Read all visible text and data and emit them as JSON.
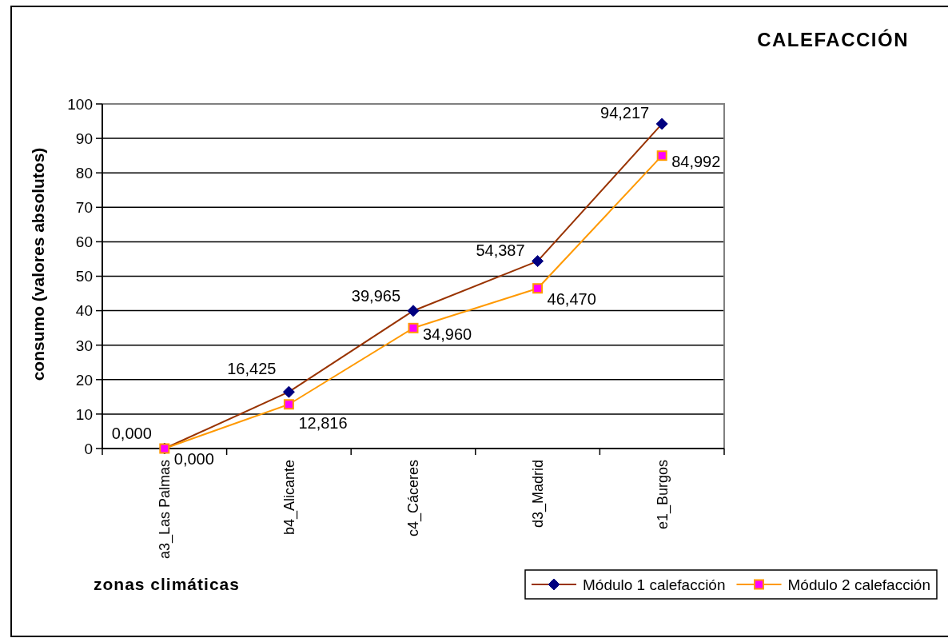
{
  "chart_data": {
    "type": "line",
    "title": "CALEFACCIÓN",
    "xlabel": "zonas climáticas",
    "ylabel": "consumo (valores absolutos)",
    "categories": [
      "a3_Las Palmas",
      "b4_Alicante",
      "c4_Cáceres",
      "d3_Madrid",
      "e1_Burgos"
    ],
    "series": [
      {
        "name": "Módulo 1 calefacción",
        "color": "#993300",
        "colors": [
          "#000080",
          "#000080",
          "#000080",
          "#000080",
          "#000080"
        ],
        "marker": "diamond",
        "values": [
          0,
          16.425,
          39.965,
          54.387,
          94.217
        ],
        "value_labels": [
          "0,000",
          "16,425",
          "39,965",
          "54,387",
          "94,217"
        ]
      },
      {
        "name": "Módulo 2 calefacción",
        "color": "#ff9900",
        "colors": [
          "#ff00ff",
          "#ff00ff",
          "#ff00ff",
          "#ff00ff",
          "#ff00ff"
        ],
        "marker": "square",
        "values": [
          0,
          12.816,
          34.96,
          46.47,
          84.992
        ],
        "value_labels": [
          "0,000",
          "12,816",
          "34,960",
          "46,470",
          "84,992"
        ]
      }
    ],
    "ylim": [
      0,
      100
    ],
    "yticks": [
      0,
      10,
      20,
      30,
      40,
      50,
      60,
      70,
      80,
      90,
      100
    ],
    "grid": "y",
    "legend": "bottom right"
  }
}
